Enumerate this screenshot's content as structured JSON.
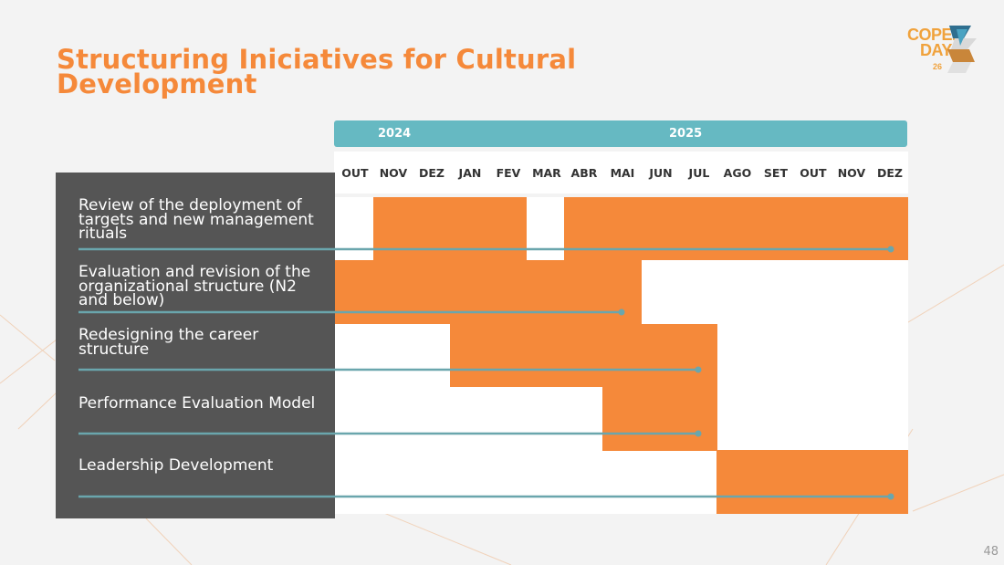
{
  "title": "Structuring Iniciatives for Cultural Development",
  "logo": {
    "line1": "COPEL",
    "line2": "DAY",
    "number": "26"
  },
  "years": [
    "2024",
    "2025"
  ],
  "months": [
    "OUT",
    "NOV",
    "DEZ",
    "JAN",
    "FEV",
    "MAR",
    "ABR",
    "MAI",
    "JUN",
    "JUL",
    "AGO",
    "SET",
    "OUT",
    "NOV",
    "DEZ"
  ],
  "tasks": [
    {
      "label": "Review of the deployment of targets and new management rituals",
      "periods": [
        [
          "NOV 2024",
          "FEV 2025"
        ],
        [
          "ABR 2025",
          "DEZ 2025"
        ]
      ]
    },
    {
      "label": "Evaluation and revision of the organizational structure (N2 and below)",
      "periods": [
        [
          "OUT 2024",
          "JUN 2025"
        ]
      ]
    },
    {
      "label": "Redesigning the career structure",
      "periods": [
        [
          "JAN 2025",
          "AGO 2025"
        ]
      ]
    },
    {
      "label": "Performance Evaluation Model",
      "periods": [
        [
          "MAI 2025",
          "AGO 2025"
        ]
      ]
    },
    {
      "label": "Leadership Development",
      "periods": [
        [
          "AGO 2025",
          "DEZ 2025"
        ]
      ]
    }
  ],
  "colors": {
    "accent": "#f5893a",
    "year_bar": "#66b9c2",
    "track_line": "#6aa6ad",
    "panel": "#555555"
  },
  "page_number": "48"
}
